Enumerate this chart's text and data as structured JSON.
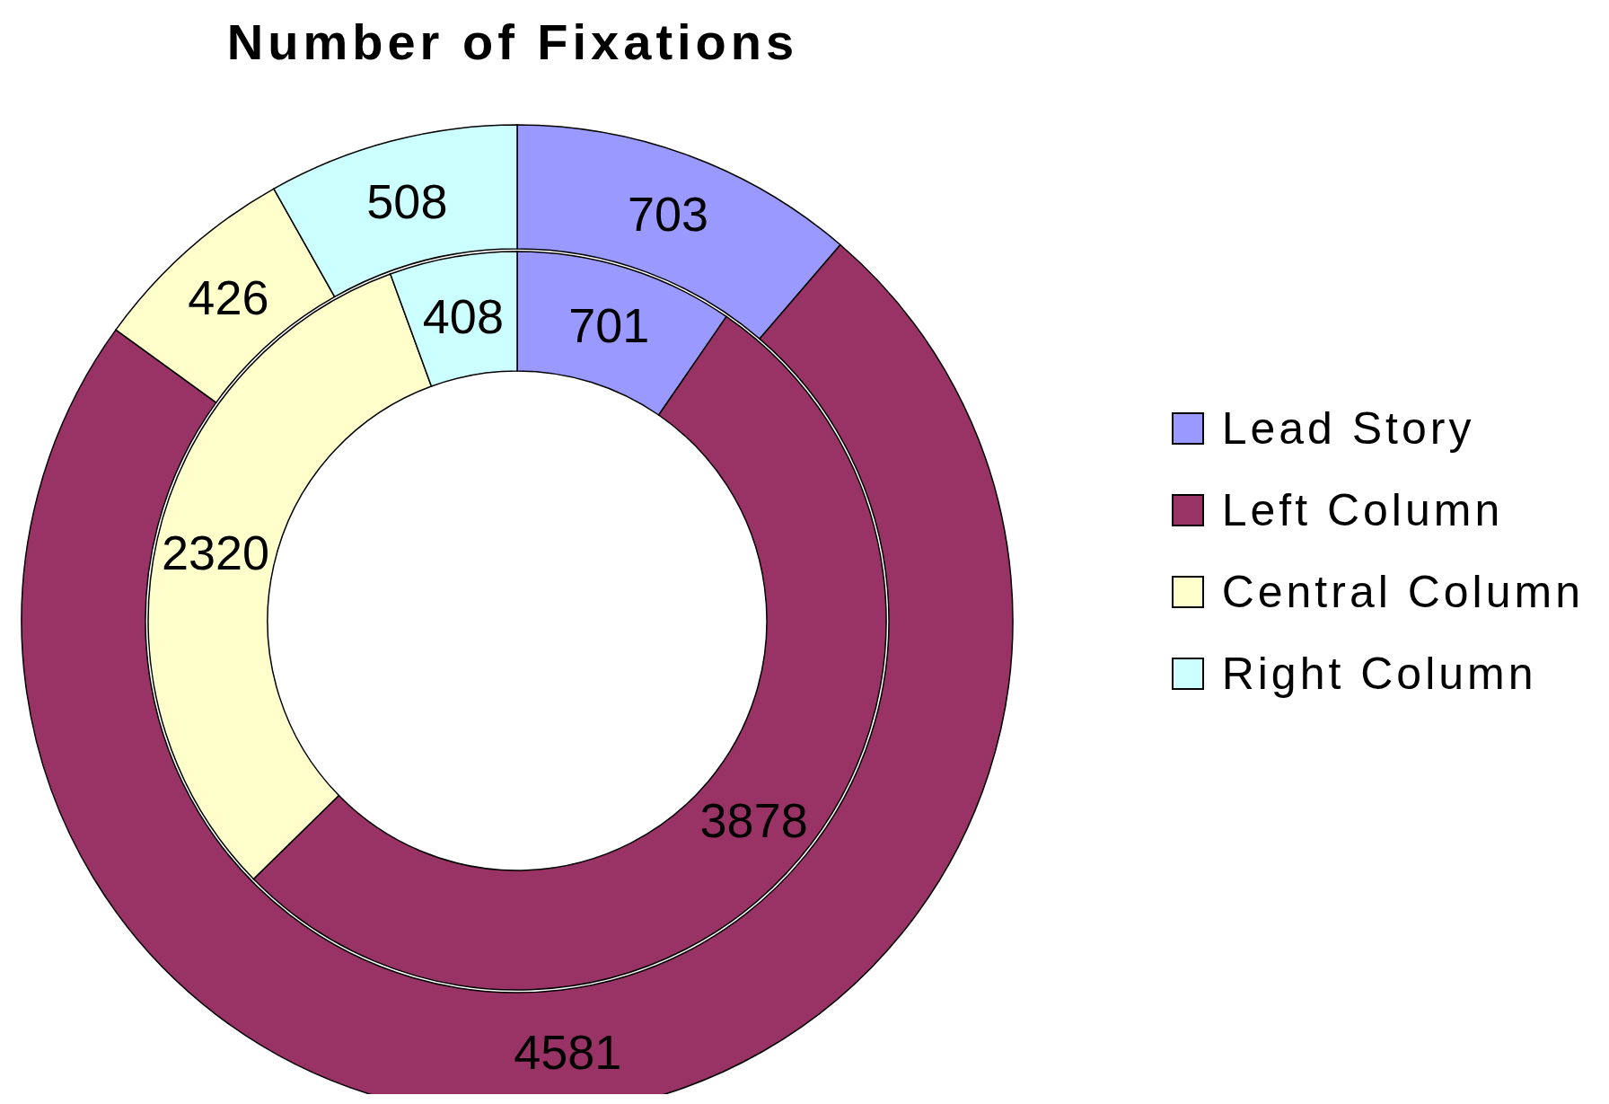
{
  "chart_data": {
    "type": "donut",
    "title": "Number of Fixations",
    "categories": [
      "Lead Story",
      "Left Column",
      "Central Column",
      "Right Column"
    ],
    "colors": [
      "#9999ff",
      "#993366",
      "#ffffcc",
      "#ccffff"
    ],
    "series": [
      {
        "values": [
          701,
          3878,
          2320,
          408
        ]
      },
      {
        "values": [
          703,
          4581,
          426,
          508
        ]
      }
    ],
    "data_labels": true,
    "legend": "right"
  }
}
